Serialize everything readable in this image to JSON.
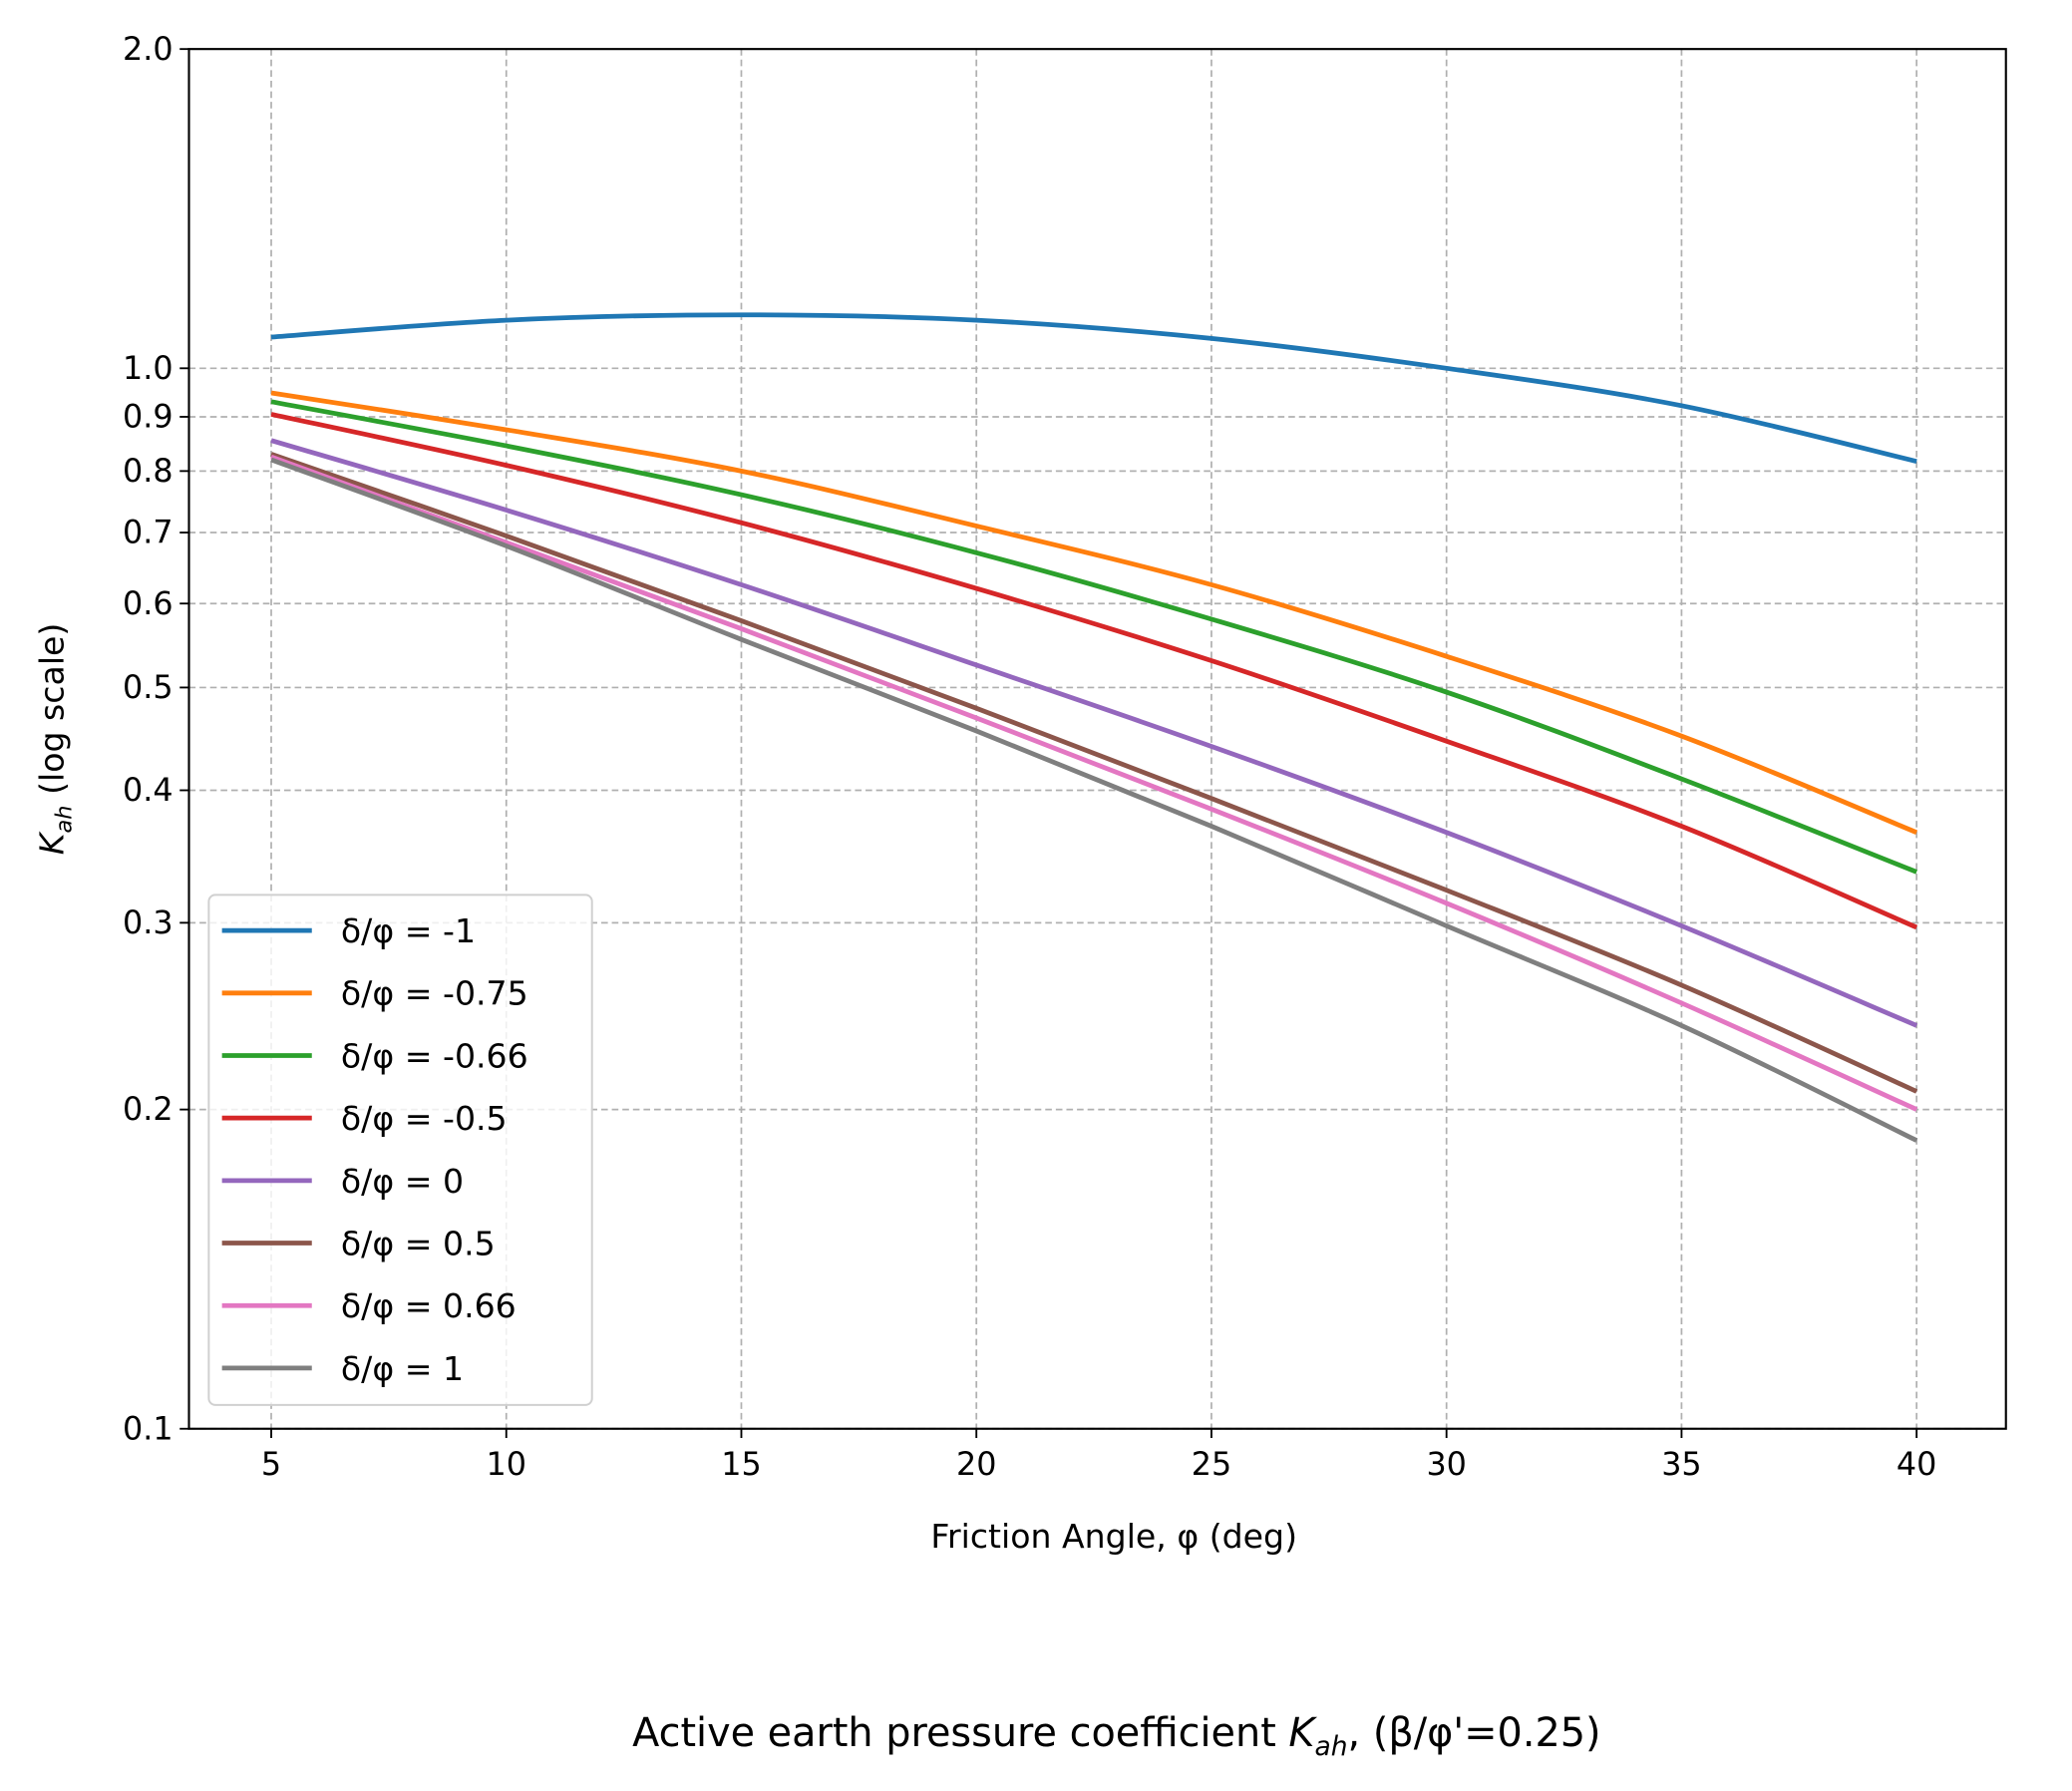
{
  "chart_data": {
    "type": "line",
    "title": "Active earth pressure coefficient K_ah, (β/φ'=0.25)",
    "title_parts": {
      "pre": "Active earth pressure coefficient ",
      "k": "K",
      "sub": "ah",
      "post": ", (β/φ'=0.25)"
    },
    "xlabel": "Friction Angle, φ (deg)",
    "ylabel_parts": {
      "k": "K",
      "sub": "ah",
      "post": " (log scale)"
    },
    "yscale": "log",
    "xlim": [
      3.25,
      41.9
    ],
    "ylim": [
      0.1,
      2.0
    ],
    "xticks": [
      5,
      10,
      15,
      20,
      25,
      30,
      35,
      40
    ],
    "xtick_labels": [
      "5",
      "10",
      "15",
      "20",
      "25",
      "30",
      "35",
      "40"
    ],
    "yticks": [
      0.1,
      0.2,
      0.3,
      0.4,
      0.5,
      0.6,
      0.7,
      0.8,
      0.9,
      1.0,
      2.0
    ],
    "ytick_labels": [
      "0.1",
      "0.2",
      "0.3",
      "0.4",
      "0.5",
      "0.6",
      "0.7",
      "0.8",
      "0.9",
      "1.0",
      "2.0"
    ],
    "grid": true,
    "legend_position": "lower-left",
    "x": [
      5,
      10,
      15,
      20,
      25,
      30,
      35,
      40
    ],
    "series": [
      {
        "name": "δ/φ = -1",
        "color": "#1f77b4",
        "values": [
          1.07,
          1.11,
          1.123,
          1.11,
          1.067,
          1.0,
          0.922,
          0.817
        ]
      },
      {
        "name": "δ/φ = -0.75",
        "color": "#ff7f0e",
        "values": [
          0.948,
          0.875,
          0.8,
          0.71,
          0.625,
          0.535,
          0.45,
          0.365
        ]
      },
      {
        "name": "δ/φ = -0.66",
        "color": "#2ca02c",
        "values": [
          0.93,
          0.845,
          0.76,
          0.67,
          0.58,
          0.495,
          0.41,
          0.335
        ]
      },
      {
        "name": "δ/φ = -0.5",
        "color": "#d62728",
        "values": [
          0.905,
          0.81,
          0.715,
          0.62,
          0.53,
          0.445,
          0.37,
          0.297
        ]
      },
      {
        "name": "δ/φ = 0",
        "color": "#9467bd",
        "values": [
          0.855,
          0.735,
          0.625,
          0.525,
          0.44,
          0.365,
          0.298,
          0.24
        ]
      },
      {
        "name": "δ/φ = 0.5",
        "color": "#8c564b",
        "values": [
          0.83,
          0.695,
          0.578,
          0.478,
          0.393,
          0.322,
          0.262,
          0.208
        ]
      },
      {
        "name": "δ/φ = 0.66",
        "color": "#e377c2",
        "values": [
          0.825,
          0.685,
          0.568,
          0.468,
          0.384,
          0.313,
          0.252,
          0.2
        ]
      },
      {
        "name": "δ/φ = 1",
        "color": "#7f7f7f",
        "values": [
          0.82,
          0.68,
          0.555,
          0.455,
          0.37,
          0.298,
          0.24,
          0.187
        ]
      }
    ]
  }
}
